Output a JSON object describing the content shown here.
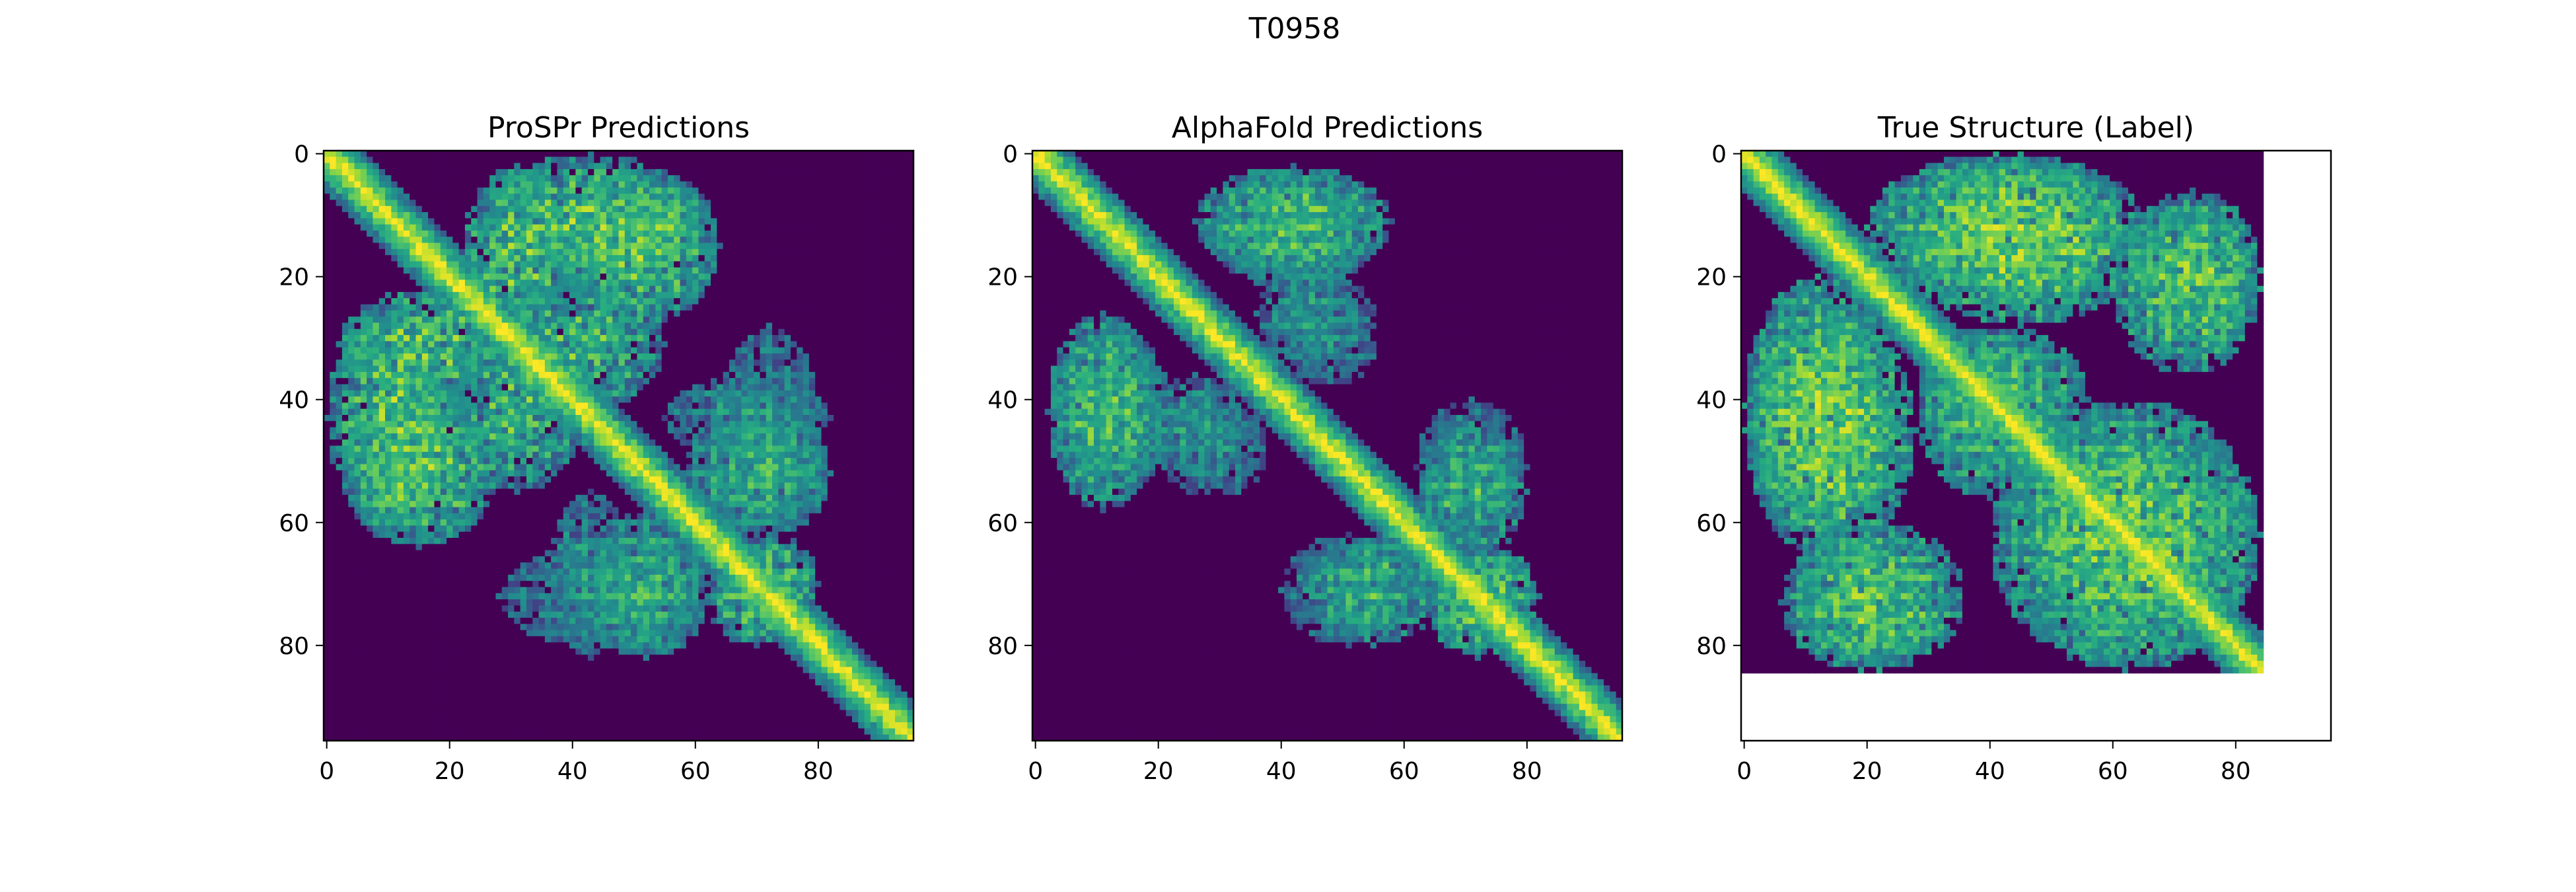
{
  "figure": {
    "suptitle": "T0958"
  },
  "chart_data": [
    {
      "type": "heatmap",
      "title": "ProSPr Predictions",
      "n": 96,
      "xlim": [
        -0.5,
        95.5
      ],
      "ylim": [
        95.5,
        -0.5
      ],
      "xticks": [
        0,
        20,
        40,
        60,
        80
      ],
      "yticks": [
        0,
        20,
        40,
        60,
        80
      ],
      "colormap": "viridis",
      "diagonal_band": {
        "width": 7,
        "noise": 0.06
      },
      "contact_regions": [
        {
          "i": [
            0,
            22
          ],
          "j": [
            26,
            60
          ],
          "strength": 0.85
        },
        {
          "i": [
            4,
            18
          ],
          "j": [
            44,
            63
          ],
          "strength": 0.8
        },
        {
          "i": [
            22,
            40
          ],
          "j": [
            2,
            30
          ],
          "strength": 0.85
        },
        {
          "i": [
            20,
            42
          ],
          "j": [
            28,
            55
          ],
          "strength": 0.8
        },
        {
          "i": [
            38,
            64
          ],
          "j": [
            2,
            28
          ],
          "strength": 0.85
        },
        {
          "i": [
            36,
            50
          ],
          "j": [
            55,
            82
          ],
          "strength": 0.6
        },
        {
          "i": [
            42,
            62
          ],
          "j": [
            62,
            82
          ],
          "strength": 0.7
        },
        {
          "i": [
            58,
            82
          ],
          "j": [
            42,
            62
          ],
          "strength": 0.7
        },
        {
          "i": [
            64,
            80
          ],
          "j": [
            28,
            56
          ],
          "strength": 0.55
        },
        {
          "i": [
            66,
            80
          ],
          "j": [
            62,
            78
          ],
          "strength": 0.8
        }
      ]
    },
    {
      "type": "heatmap",
      "title": "AlphaFold Predictions",
      "n": 96,
      "xlim": [
        -0.5,
        95.5
      ],
      "ylim": [
        95.5,
        -0.5
      ],
      "xticks": [
        0,
        20,
        40,
        60,
        80
      ],
      "yticks": [
        0,
        20,
        40,
        60,
        80
      ],
      "colormap": "viridis",
      "diagonal_band": {
        "width": 7,
        "noise": 0.06
      },
      "contact_regions": [
        {
          "i": [
            2,
            20
          ],
          "j": [
            26,
            58
          ],
          "strength": 0.8
        },
        {
          "i": [
            20,
            38
          ],
          "j": [
            40,
            56
          ],
          "strength": 0.55
        },
        {
          "i": [
            28,
            56
          ],
          "j": [
            3,
            22
          ],
          "strength": 0.75
        },
        {
          "i": [
            36,
            52
          ],
          "j": [
            18,
            34
          ],
          "strength": 0.6
        },
        {
          "i": [
            44,
            66
          ],
          "j": [
            62,
            80
          ],
          "strength": 0.75
        },
        {
          "i": [
            62,
            80
          ],
          "j": [
            40,
            62
          ],
          "strength": 0.6
        },
        {
          "i": [
            64,
            80
          ],
          "j": [
            66,
            82
          ],
          "strength": 0.85
        }
      ]
    },
    {
      "type": "heatmap",
      "title": "True Structure (Label)",
      "n": 85,
      "xlim": [
        -0.5,
        95.5
      ],
      "ylim": [
        95.5,
        -0.5
      ],
      "xticks": [
        0,
        20,
        40,
        60,
        80
      ],
      "yticks": [
        0,
        20,
        40,
        60,
        80
      ],
      "colormap": "viridis",
      "diagonal_band": {
        "width": 7,
        "noise": 0.05
      },
      "contact_regions": [
        {
          "i": [
            0,
            24
          ],
          "j": [
            20,
            62
          ],
          "strength": 0.9
        },
        {
          "i": [
            6,
            32
          ],
          "j": [
            62,
            84
          ],
          "strength": 0.85
        },
        {
          "i": [
            24,
            66
          ],
          "j": [
            0,
            28
          ],
          "strength": 0.9
        },
        {
          "i": [
            28,
            52
          ],
          "j": [
            28,
            56
          ],
          "strength": 0.8
        },
        {
          "i": [
            42,
            84
          ],
          "j": [
            40,
            84
          ],
          "strength": 0.85
        },
        {
          "i": [
            60,
            84
          ],
          "j": [
            8,
            36
          ],
          "strength": 0.85
        }
      ]
    }
  ]
}
